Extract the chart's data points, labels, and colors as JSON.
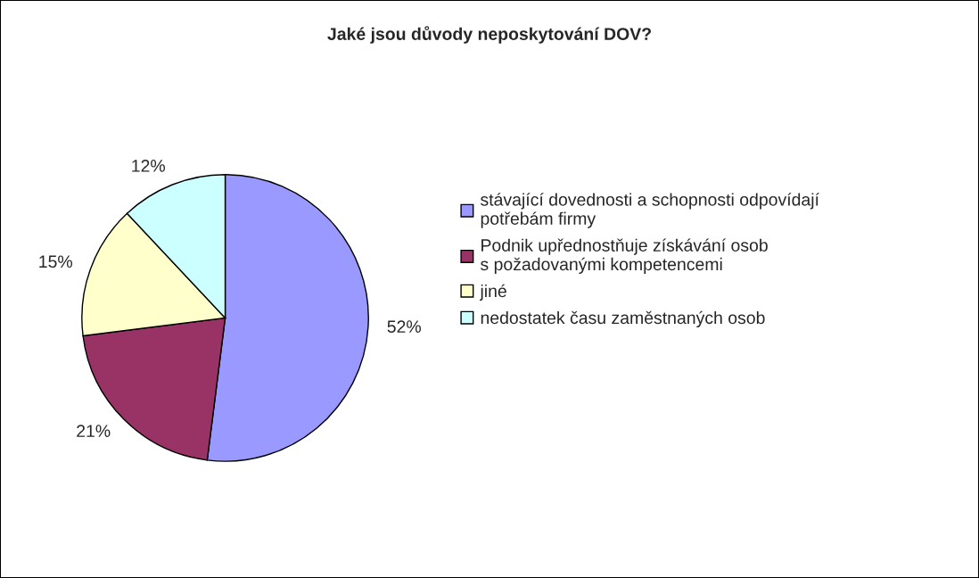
{
  "chart_data": {
    "type": "pie",
    "title": "Jaké jsou důvody neposkytování DOV?",
    "categories": [
      "stávající dovednosti a schopnosti odpovídají\npotřebám firmy",
      "Podnik upřednostňuje získávání osob\ns požadovanými kompetencemi",
      "jiné",
      "nedostatek času zaměstnaných osob"
    ],
    "values": [
      52,
      21,
      15,
      12
    ],
    "colors": [
      "#9999ff",
      "#993366",
      "#ffffcc",
      "#ccffff"
    ],
    "value_labels": [
      "52%",
      "21%",
      "15%",
      "12%"
    ],
    "legend": "right"
  }
}
